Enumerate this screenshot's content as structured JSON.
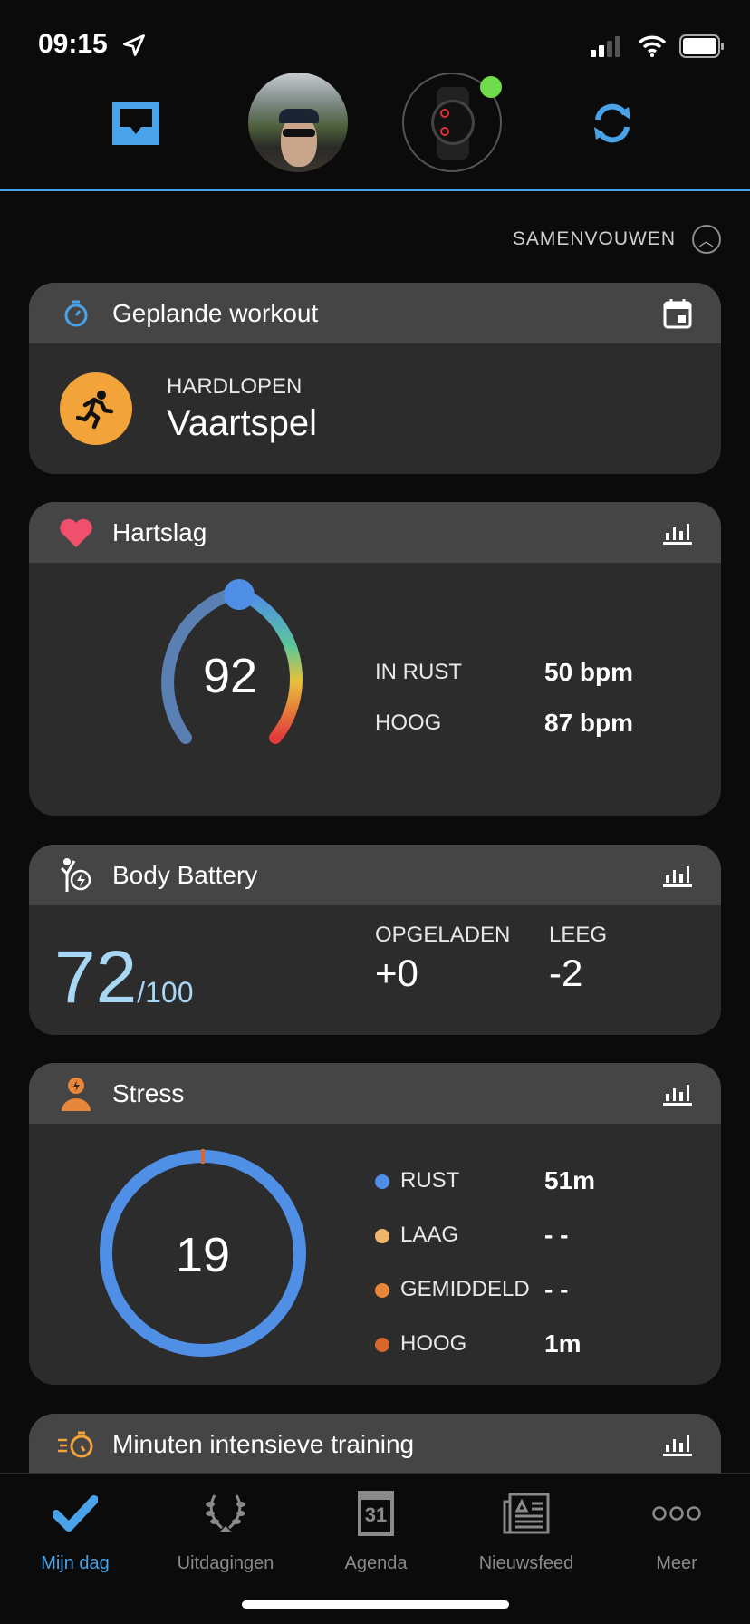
{
  "status_bar": {
    "time": "09:15"
  },
  "header": {
    "icons": [
      "inbox-icon",
      "avatar",
      "watch-device",
      "sync-icon"
    ],
    "device_connected_color": "#6fdc4a",
    "accent": "#4aa3e8"
  },
  "collapse_label": "SAMENVOUWEN",
  "workout": {
    "title": "Geplande workout",
    "activity_type": "HARDLOPEN",
    "name": "Vaartspel"
  },
  "heart_rate": {
    "title": "Hartslag",
    "current": "92",
    "rows": [
      {
        "label": "IN RUST",
        "value": "50 bpm"
      },
      {
        "label": "HOOG",
        "value": "87 bpm"
      }
    ]
  },
  "body_battery": {
    "title": "Body Battery",
    "value": "72",
    "max": "/100",
    "charged_label": "OPGELADEN",
    "charged": "+0",
    "drained_label": "LEEG",
    "drained": "-2"
  },
  "stress": {
    "title": "Stress",
    "value": "19",
    "rows": [
      {
        "label": "RUST",
        "value": "51m",
        "color": "#4f8fe6"
      },
      {
        "label": "LAAG",
        "value": "- -",
        "color": "#f0b46a"
      },
      {
        "label": "GEMIDDELD",
        "value": "- -",
        "color": "#e8863a"
      },
      {
        "label": "HOOG",
        "value": "1m",
        "color": "#d9662a"
      }
    ]
  },
  "intensity": {
    "title": "Minuten intensieve training"
  },
  "tabs": [
    {
      "label": "Mijn dag",
      "active": true
    },
    {
      "label": "Uitdagingen"
    },
    {
      "label": "Agenda",
      "day": "31"
    },
    {
      "label": "Nieuwsfeed"
    },
    {
      "label": "Meer"
    }
  ]
}
